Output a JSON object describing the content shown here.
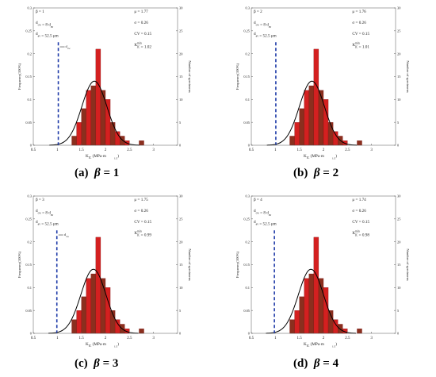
{
  "colors": {
    "bar": "#d42020",
    "bar_edge": "#7a0c0c",
    "bar_dark": "#8b2f1e",
    "curve": "#000000",
    "threshold": "#1e3aa8"
  },
  "common": {
    "xlabel": "K",
    "xlabel_sub": "IC",
    "xlabel_unit": "(MPa·m",
    "xlabel_exp": "1/2",
    "xlabel_close": ")",
    "ylabel_left": "Frequency(100%)",
    "ylabel_right": "Number of specimens"
  },
  "chart_data": [
    {
      "type": "bar",
      "caption_letter": "(a)",
      "caption_eq": "= 1",
      "caption_beta": "β",
      "stats_left": [
        {
          "text": "β = 1"
        },
        {
          "text": "d",
          "sub": "cw",
          "mid": " = 8 ",
          "tail": "d",
          "tail_sub": "av"
        },
        {
          "text": "d",
          "sub": "av",
          "mid": " = 52.5 μm"
        }
      ],
      "stats_right": [
        {
          "text": "μ = 1.77"
        },
        {
          "text": "σ = 0.26"
        },
        {
          "text": "CV = 0.15"
        },
        {
          "text": "K",
          "sub": "IC",
          "sup": "min",
          "mid": " = 1.02"
        }
      ],
      "threshold_label": "d",
      "threshold_label_sub": "cw",
      "mu": 1.77,
      "sigma": 0.26,
      "threshold": 1.02,
      "xlim": [
        0.5,
        3.5
      ],
      "ylim_left": [
        0,
        0.3
      ],
      "ylim_right": [
        0,
        30
      ],
      "xticks": [
        "0.5",
        "1",
        "1.5",
        "2",
        "2.5",
        "3"
      ],
      "yticks_left": [
        "0",
        "0.05",
        "0.1",
        "0.15",
        "0.2",
        "0.25",
        "0.3"
      ],
      "yticks_right": [
        "0",
        "5",
        "10",
        "15",
        "20",
        "25",
        "30"
      ],
      "bins_start": 1.3,
      "bin_width": 0.1,
      "values": [
        0.02,
        0.05,
        0.08,
        0.12,
        0.13,
        0.21,
        0.12,
        0.1,
        0.05,
        0.03,
        0.02,
        0.01,
        0.0,
        0.0,
        0.01
      ]
    },
    {
      "type": "bar",
      "caption_letter": "(b)",
      "caption_eq": "= 2",
      "caption_beta": "β",
      "stats_left": [
        {
          "text": "β = 2"
        },
        {
          "text": "d",
          "sub": "cw",
          "mid": " = 8 ",
          "tail": "d",
          "tail_sub": "av"
        },
        {
          "text": "d",
          "sub": "av",
          "mid": " = 52.5 μm"
        }
      ],
      "stats_right": [
        {
          "text": "μ = 1.76"
        },
        {
          "text": "σ = 0.26"
        },
        {
          "text": "CV = 0.15"
        },
        {
          "text": "K",
          "sub": "IC",
          "sup": "min",
          "mid": " = 1.01"
        }
      ],
      "threshold_label": "",
      "threshold_label_sub": "",
      "mu": 1.76,
      "sigma": 0.26,
      "threshold": 1.01,
      "xlim": [
        0.5,
        3.5
      ],
      "ylim_left": [
        0,
        0.3
      ],
      "ylim_right": [
        0,
        30
      ],
      "xticks": [
        "0.5",
        "1",
        "1.5",
        "2",
        "2.5",
        "3"
      ],
      "yticks_left": [
        "0",
        "0.05",
        "0.1",
        "0.15",
        "0.2",
        "0.25",
        "0.3"
      ],
      "yticks_right": [
        "0",
        "5",
        "10",
        "15",
        "20",
        "25",
        "30"
      ],
      "bins_start": 1.3,
      "bin_width": 0.1,
      "values": [
        0.02,
        0.05,
        0.08,
        0.12,
        0.13,
        0.21,
        0.12,
        0.1,
        0.05,
        0.03,
        0.02,
        0.01,
        0.0,
        0.0,
        0.01
      ]
    },
    {
      "type": "bar",
      "caption_letter": "(c)",
      "caption_eq": "= 3",
      "caption_beta": "β",
      "stats_left": [
        {
          "text": "β = 3"
        },
        {
          "text": "d",
          "sub": "cw",
          "mid": " = 8 ",
          "tail": "d",
          "tail_sub": "av"
        },
        {
          "text": "d",
          "sub": "av",
          "mid": " = 52.5 μm"
        }
      ],
      "stats_right": [
        {
          "text": "μ = 1.75"
        },
        {
          "text": "σ = 0.26"
        },
        {
          "text": "CV = 0.15"
        },
        {
          "text": "K",
          "sub": "IC",
          "sup": "min",
          "mid": " = 0.99"
        }
      ],
      "threshold_label": "d",
      "threshold_label_sub": "cw",
      "mu": 1.75,
      "sigma": 0.26,
      "threshold": 0.99,
      "xlim": [
        0.5,
        3.5
      ],
      "ylim_left": [
        0,
        0.3
      ],
      "ylim_right": [
        0,
        30
      ],
      "xticks": [
        "0.5",
        "1",
        "1.5",
        "2",
        "2.5",
        "3"
      ],
      "yticks_left": [
        "0",
        "0.05",
        "0.1",
        "0.15",
        "0.2",
        "0.25",
        "0.3"
      ],
      "yticks_right": [
        "0",
        "5",
        "10",
        "15",
        "20",
        "25",
        "30"
      ],
      "bins_start": 1.1,
      "bin_width": 0.1,
      "values": [
        0.0,
        0.0,
        0.03,
        0.05,
        0.08,
        0.12,
        0.13,
        0.21,
        0.12,
        0.1,
        0.05,
        0.03,
        0.02,
        0.01,
        0.0,
        0.0,
        0.01
      ]
    },
    {
      "type": "bar",
      "caption_letter": "(d)",
      "caption_eq": "= 4",
      "caption_beta": "β",
      "stats_left": [
        {
          "text": "β = 4"
        },
        {
          "text": "d",
          "sub": "cw",
          "mid": " = 8 ",
          "tail": "d",
          "tail_sub": "av"
        },
        {
          "text": "d",
          "sub": "av",
          "mid": " = 52.5 μm"
        }
      ],
      "stats_right": [
        {
          "text": "μ = 1.74"
        },
        {
          "text": "σ = 0.26"
        },
        {
          "text": "CV = 0.15"
        },
        {
          "text": "K",
          "sub": "IC",
          "sup": "min",
          "mid": " = 0.98"
        }
      ],
      "threshold_label": "",
      "threshold_label_sub": "",
      "mu": 1.74,
      "sigma": 0.26,
      "threshold": 0.98,
      "xlim": [
        0.5,
        3.5
      ],
      "ylim_left": [
        0,
        0.3
      ],
      "ylim_right": [
        0,
        30
      ],
      "xticks": [
        "0.5",
        "1",
        "1.5",
        "2",
        "2.5",
        "3"
      ],
      "yticks_left": [
        "0",
        "0.05",
        "0.1",
        "0.15",
        "0.2",
        "0.25",
        "0.3"
      ],
      "yticks_right": [
        "0",
        "5",
        "10",
        "15",
        "20",
        "25",
        "30"
      ],
      "bins_start": 1.1,
      "bin_width": 0.1,
      "values": [
        0.0,
        0.0,
        0.03,
        0.05,
        0.08,
        0.12,
        0.13,
        0.21,
        0.12,
        0.1,
        0.05,
        0.03,
        0.02,
        0.01,
        0.0,
        0.0,
        0.01
      ]
    }
  ]
}
